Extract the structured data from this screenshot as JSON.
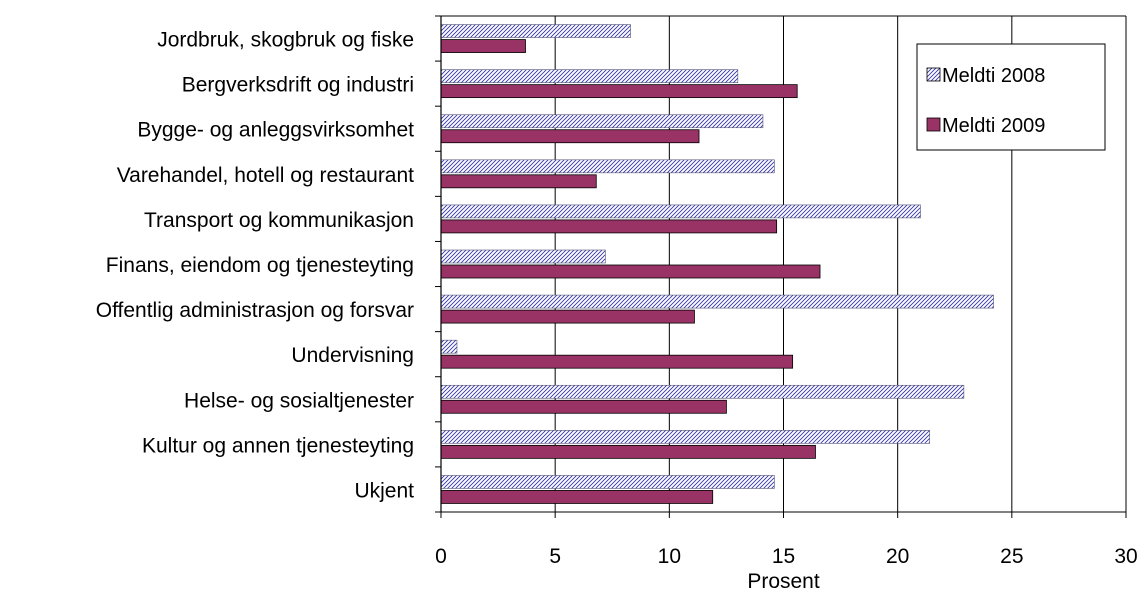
{
  "chart_data": {
    "type": "bar",
    "orientation": "horizontal",
    "categories": [
      "Jordbruk, skogbruk og fiske",
      "Bergverksdrift og industri",
      "Bygge- og anleggsvirksomhet",
      "Varehandel,  hotell og restaurant",
      "Transport og kommunikasjon",
      "Finans, eiendom og tjenesteyting",
      "Offentlig administrasjon og forsvar",
      "Undervisning",
      "Helse- og sosialtjenester",
      "Kultur og annen tjenesteyting",
      "Ukjent"
    ],
    "series": [
      {
        "name": "Meldti 2008",
        "values": [
          8.3,
          13.0,
          14.1,
          14.6,
          21.0,
          7.2,
          24.2,
          0.7,
          22.9,
          21.4,
          14.6
        ],
        "color": "#c8c8f0",
        "pattern": "diagonal-hatch"
      },
      {
        "name": "Meldti 2009",
        "values": [
          3.7,
          15.6,
          11.3,
          6.8,
          14.7,
          16.6,
          11.1,
          15.4,
          12.5,
          16.4,
          11.9
        ],
        "color": "#993366",
        "pattern": "solid"
      }
    ],
    "xlabel": "Prosent",
    "ylabel": "",
    "xlim": [
      0,
      30
    ],
    "xticks": [
      "0",
      "5",
      "10",
      "15",
      "20",
      "25",
      "30"
    ],
    "grid": "vertical major gridlines",
    "legend_position": "top-right inside plot"
  }
}
